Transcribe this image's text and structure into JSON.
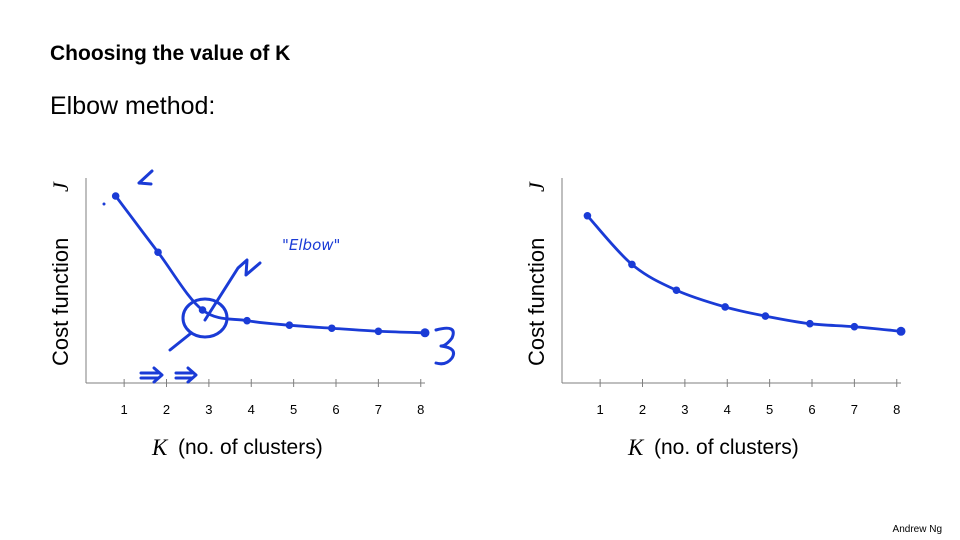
{
  "slide": {
    "title": "Choosing the value of K",
    "subtitle": "Elbow method:",
    "footer": "Andrew Ng"
  },
  "colors": {
    "ink": "#1a3bd6",
    "axis": "#7f7f7f"
  },
  "chart_data": [
    {
      "type": "line",
      "title": "",
      "xlabel_symbol": "K",
      "xlabel": "(no. of clusters)",
      "ylabel": "Cost function",
      "ylabel_symbol": "J",
      "x": [
        1,
        2,
        3,
        4,
        5,
        6,
        7,
        8
      ],
      "xlim": [
        0.1,
        8.1
      ],
      "ylim": [
        0,
        100
      ],
      "series": [
        {
          "name": "cost",
          "x": [
            0.8,
            1.8,
            2.85,
            3.9,
            4.9,
            5.9,
            7,
            8.1
          ],
          "values": [
            100,
            63,
            25,
            18,
            15,
            13,
            11,
            10
          ]
        }
      ],
      "annotations": [
        "\"Elbow\""
      ]
    },
    {
      "type": "line",
      "title": "",
      "xlabel_symbol": "K",
      "xlabel": "(no. of clusters)",
      "ylabel": "Cost function",
      "ylabel_symbol": "J",
      "x": [
        1,
        2,
        3,
        4,
        5,
        6,
        7,
        8
      ],
      "xlim": [
        0.1,
        8.1
      ],
      "ylim": [
        0,
        100
      ],
      "series": [
        {
          "name": "cost",
          "x": [
            0.7,
            1.75,
            2.8,
            3.95,
            4.9,
            5.95,
            7,
            8.1
          ],
          "values": [
            87,
            55,
            38,
            27,
            21,
            16,
            14,
            11
          ]
        }
      ],
      "annotations": []
    }
  ]
}
